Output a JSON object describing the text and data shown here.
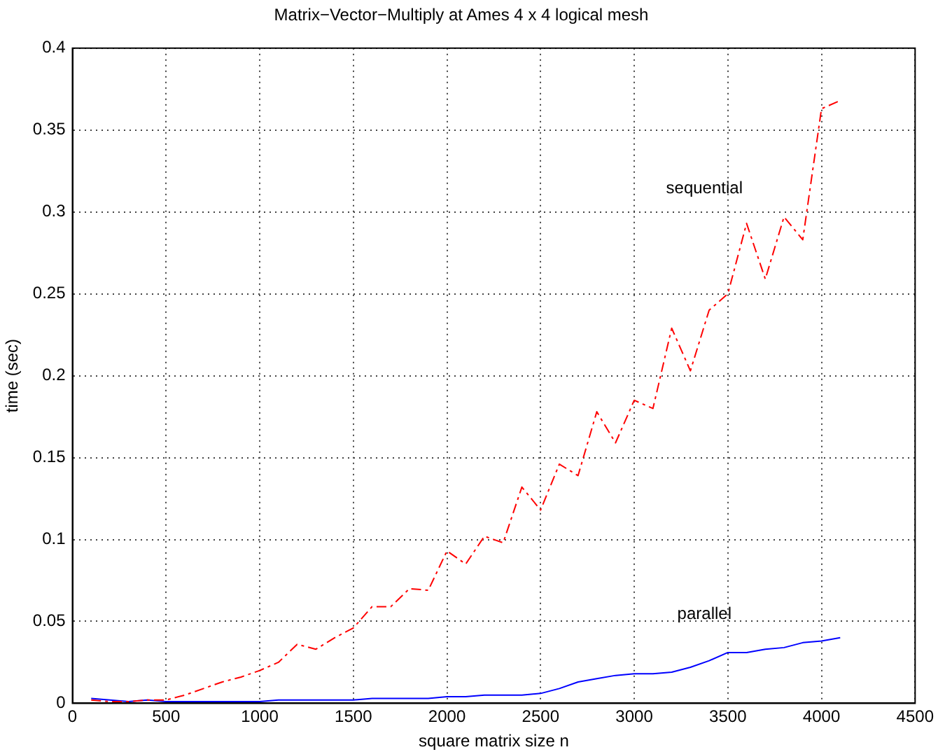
{
  "chart_data": {
    "type": "line",
    "title": "Matrix−Vector−Multiply at Ames 4 x 4 logical mesh",
    "xlabel": "square matrix size n",
    "ylabel": "time (sec)",
    "x": [
      100,
      200,
      300,
      400,
      500,
      600,
      700,
      800,
      900,
      1000,
      1100,
      1200,
      1300,
      1400,
      1500,
      1600,
      1700,
      1800,
      1900,
      2000,
      2100,
      2200,
      2300,
      2400,
      2500,
      2600,
      2700,
      2800,
      2900,
      3000,
      3100,
      3200,
      3300,
      3400,
      3500,
      3600,
      3700,
      3800,
      3900,
      4000,
      4100
    ],
    "series": [
      {
        "name": "sequential",
        "color": "#ff0000",
        "line_style": "dashed",
        "values": [
          0.002,
          0.001,
          0.001,
          0.002,
          0.002,
          0.005,
          0.009,
          0.013,
          0.016,
          0.02,
          0.025,
          0.036,
          0.033,
          0.04,
          0.046,
          0.059,
          0.059,
          0.07,
          0.069,
          0.093,
          0.085,
          0.102,
          0.098,
          0.132,
          0.118,
          0.146,
          0.139,
          0.178,
          0.159,
          0.185,
          0.18,
          0.229,
          0.203,
          0.24,
          0.25,
          0.293,
          0.259,
          0.297,
          0.283,
          0.363,
          0.368
        ]
      },
      {
        "name": "parallel",
        "color": "#0000ff",
        "line_style": "solid",
        "values": [
          0.003,
          0.002,
          0.001,
          0.002,
          0.001,
          0.001,
          0.001,
          0.001,
          0.001,
          0.001,
          0.002,
          0.002,
          0.002,
          0.002,
          0.002,
          0.003,
          0.003,
          0.003,
          0.003,
          0.004,
          0.004,
          0.005,
          0.005,
          0.005,
          0.006,
          0.009,
          0.013,
          0.015,
          0.017,
          0.018,
          0.018,
          0.019,
          0.022,
          0.026,
          0.031,
          0.031,
          0.033,
          0.034,
          0.037,
          0.038,
          0.04
        ]
      }
    ],
    "xlim": [
      0,
      4500
    ],
    "xticks": [
      0,
      500,
      1000,
      1500,
      2000,
      2500,
      3000,
      3500,
      4000,
      4500
    ],
    "ylim": [
      0,
      0.4
    ],
    "yticks": [
      0,
      0.05,
      0.1,
      0.15,
      0.2,
      0.25,
      0.3,
      0.35,
      0.4
    ],
    "grid": true,
    "legend": false,
    "marker": "none"
  }
}
